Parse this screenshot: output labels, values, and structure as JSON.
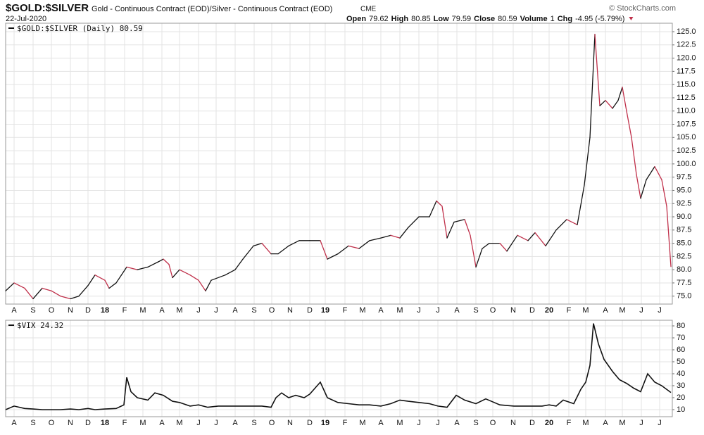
{
  "header": {
    "symbol": "$GOLD:$SILVER",
    "description": "Gold - Continuous Contract (EOD)/Silver - Continuous Contract (EOD)",
    "exchange": "CME",
    "date": "22-Jul-2020",
    "open_label": "Open",
    "open": "79.62",
    "high_label": "High",
    "high": "80.85",
    "low_label": "Low",
    "low": "79.59",
    "close_label": "Close",
    "close": "80.59",
    "volume_label": "Volume",
    "volume": "1",
    "chg_label": "Chg",
    "chg": "-4.95 (-5.79%)",
    "source": "© StockCharts.com"
  },
  "chart_data": [
    {
      "type": "line",
      "legend": "$GOLD:$SILVER (Daily) 80.59",
      "up_color": "#111111",
      "down_color": "#c0304a",
      "grid": true,
      "series": [
        {
          "name": "$GOLD:$SILVER",
          "x": [
            0,
            12,
            27,
            39,
            52,
            65,
            78,
            92,
            104,
            117,
            127,
            141,
            147,
            157,
            172,
            187,
            202,
            217,
            224,
            232,
            237,
            247,
            262,
            274,
            284,
            292,
            312,
            326,
            337,
            352,
            364,
            377,
            387,
            402,
            417,
            432,
            447,
            457,
            472,
            487,
            502,
            517,
            533,
            547,
            560,
            572,
            587,
            602,
            612,
            620,
            627,
            637,
            652,
            660,
            668,
            677,
            687,
            702,
            712,
            727,
            742,
            752,
            767,
            782,
            797,
            812,
            822,
            830,
            837,
            844,
            852,
            862,
            870,
            876,
            882,
            889,
            896,
            902,
            910,
            922,
            932,
            939,
            945
          ],
          "values": [
            76,
            77.5,
            76.5,
            74.5,
            76.5,
            76,
            75,
            74.5,
            75,
            77,
            79,
            78,
            76.5,
            77.5,
            80.5,
            80,
            80.5,
            81.5,
            82,
            81,
            78.5,
            80,
            79,
            78,
            76,
            78,
            79,
            80,
            82,
            84.5,
            85,
            83,
            83,
            84.5,
            85.5,
            85.5,
            85.5,
            82,
            83,
            84.5,
            84,
            85.5,
            86,
            86.5,
            86,
            88,
            90,
            90,
            93,
            92,
            86,
            89,
            89.5,
            86.5,
            80.5,
            84,
            85,
            85,
            83.5,
            86.5,
            85.5,
            87,
            84.5,
            87.5,
            89.5,
            88.5,
            96,
            105,
            124.5,
            111,
            112,
            110.5,
            112,
            114.5,
            110,
            105,
            98,
            93.5,
            97,
            99.5,
            97,
            92,
            80.59
          ]
        }
      ],
      "xlim": [
        0,
        947
      ],
      "ylim": [
        73.5,
        126.6
      ],
      "xticks": [
        {
          "value": 12,
          "label": "A"
        },
        {
          "value": 39,
          "label": "S"
        },
        {
          "value": 65,
          "label": "O"
        },
        {
          "value": 92,
          "label": "N"
        },
        {
          "value": 117,
          "label": "D"
        },
        {
          "value": 141,
          "label": "18"
        },
        {
          "value": 169,
          "label": "F"
        },
        {
          "value": 195,
          "label": "M"
        },
        {
          "value": 222,
          "label": "A"
        },
        {
          "value": 247,
          "label": "M"
        },
        {
          "value": 274,
          "label": "J"
        },
        {
          "value": 299,
          "label": "J"
        },
        {
          "value": 326,
          "label": "A"
        },
        {
          "value": 353,
          "label": "S"
        },
        {
          "value": 378,
          "label": "O"
        },
        {
          "value": 404,
          "label": "N"
        },
        {
          "value": 432,
          "label": "D"
        },
        {
          "value": 454,
          "label": "19"
        },
        {
          "value": 482,
          "label": "F"
        },
        {
          "value": 507,
          "label": "M"
        },
        {
          "value": 533,
          "label": "A"
        },
        {
          "value": 560,
          "label": "M"
        },
        {
          "value": 587,
          "label": "J"
        },
        {
          "value": 614,
          "label": "J"
        },
        {
          "value": 641,
          "label": "A"
        },
        {
          "value": 668,
          "label": "S"
        },
        {
          "value": 692,
          "label": "O"
        },
        {
          "value": 721,
          "label": "N"
        },
        {
          "value": 748,
          "label": "D"
        },
        {
          "value": 772,
          "label": "20"
        },
        {
          "value": 800,
          "label": "F"
        },
        {
          "value": 824,
          "label": "M"
        },
        {
          "value": 852,
          "label": "A"
        },
        {
          "value": 876,
          "label": "M"
        },
        {
          "value": 903,
          "label": "J"
        },
        {
          "value": 929,
          "label": "J"
        }
      ],
      "yticks": [
        {
          "value": 75,
          "label": "75.0"
        },
        77.5,
        {
          "value": 80,
          "label": "80.0"
        },
        82.5,
        {
          "value": 85,
          "label": "85.0"
        },
        87.5,
        {
          "value": 90,
          "label": "90.0"
        },
        92.5,
        {
          "value": 95,
          "label": "95.0"
        },
        97.5,
        {
          "value": 100,
          "label": "100.0"
        },
        102.5,
        {
          "value": 105,
          "label": "105.0"
        },
        107.5,
        {
          "value": 110,
          "label": "110.0"
        },
        112.5,
        {
          "value": 115,
          "label": "115.0"
        },
        117.5,
        {
          "value": 120,
          "label": "120.0"
        },
        122.5,
        {
          "value": 125,
          "label": "125.0"
        }
      ]
    },
    {
      "type": "line",
      "legend": "$VIX 24.32",
      "color": "#111111",
      "grid": true,
      "series": [
        {
          "name": "$VIX",
          "x": [
            0,
            12,
            27,
            39,
            52,
            65,
            78,
            92,
            104,
            117,
            127,
            141,
            157,
            168,
            172,
            178,
            187,
            202,
            212,
            224,
            237,
            247,
            262,
            274,
            287,
            302,
            326,
            352,
            364,
            377,
            384,
            392,
            402,
            412,
            424,
            432,
            447,
            457,
            472,
            487,
            502,
            517,
            533,
            547,
            560,
            572,
            587,
            602,
            614,
            627,
            640,
            652,
            668,
            682,
            702,
            722,
            748,
            762,
            772,
            782,
            792,
            807,
            817,
            824,
            830,
            835,
            842,
            850,
            862,
            872,
            882,
            892,
            902,
            912,
            922,
            932,
            945
          ],
          "values": [
            10,
            13,
            11,
            10.5,
            10,
            10,
            10,
            10.5,
            10,
            11,
            10,
            10.5,
            11,
            14,
            37,
            25,
            20,
            18,
            24,
            22,
            17,
            16,
            13,
            14,
            12,
            13,
            13,
            13,
            13,
            12,
            20,
            24,
            20,
            22,
            20,
            23,
            33,
            20,
            16,
            15,
            14,
            14,
            13,
            15,
            18,
            17,
            16,
            15,
            13,
            12,
            22,
            18,
            15,
            19,
            14,
            13,
            13,
            13,
            14,
            13,
            18,
            15,
            27,
            33,
            47,
            82,
            65,
            52,
            42,
            35,
            32,
            28,
            25,
            40,
            33,
            30,
            24.32
          ]
        }
      ],
      "xlim": [
        0,
        947
      ],
      "ylim": [
        4.1,
        84.7
      ],
      "xticks": [
        {
          "value": 12,
          "label": "A"
        },
        {
          "value": 39,
          "label": "S"
        },
        {
          "value": 65,
          "label": "O"
        },
        {
          "value": 92,
          "label": "N"
        },
        {
          "value": 117,
          "label": "D"
        },
        {
          "value": 141,
          "label": "18"
        },
        {
          "value": 169,
          "label": "F"
        },
        {
          "value": 195,
          "label": "M"
        },
        {
          "value": 222,
          "label": "A"
        },
        {
          "value": 247,
          "label": "M"
        },
        {
          "value": 274,
          "label": "J"
        },
        {
          "value": 299,
          "label": "J"
        },
        {
          "value": 326,
          "label": "A"
        },
        {
          "value": 353,
          "label": "S"
        },
        {
          "value": 378,
          "label": "O"
        },
        {
          "value": 404,
          "label": "N"
        },
        {
          "value": 432,
          "label": "D"
        },
        {
          "value": 454,
          "label": "19"
        },
        {
          "value": 482,
          "label": "F"
        },
        {
          "value": 507,
          "label": "M"
        },
        {
          "value": 533,
          "label": "A"
        },
        {
          "value": 560,
          "label": "M"
        },
        {
          "value": 587,
          "label": "J"
        },
        {
          "value": 614,
          "label": "J"
        },
        {
          "value": 641,
          "label": "A"
        },
        {
          "value": 668,
          "label": "S"
        },
        {
          "value": 692,
          "label": "O"
        },
        {
          "value": 721,
          "label": "N"
        },
        {
          "value": 748,
          "label": "D"
        },
        {
          "value": 772,
          "label": "20"
        },
        {
          "value": 800,
          "label": "F"
        },
        {
          "value": 824,
          "label": "M"
        },
        {
          "value": 852,
          "label": "A"
        },
        {
          "value": 876,
          "label": "M"
        },
        {
          "value": 903,
          "label": "J"
        },
        {
          "value": 929,
          "label": "J"
        }
      ],
      "yticks": [
        10,
        20,
        30,
        40,
        50,
        60,
        70,
        80
      ]
    }
  ]
}
